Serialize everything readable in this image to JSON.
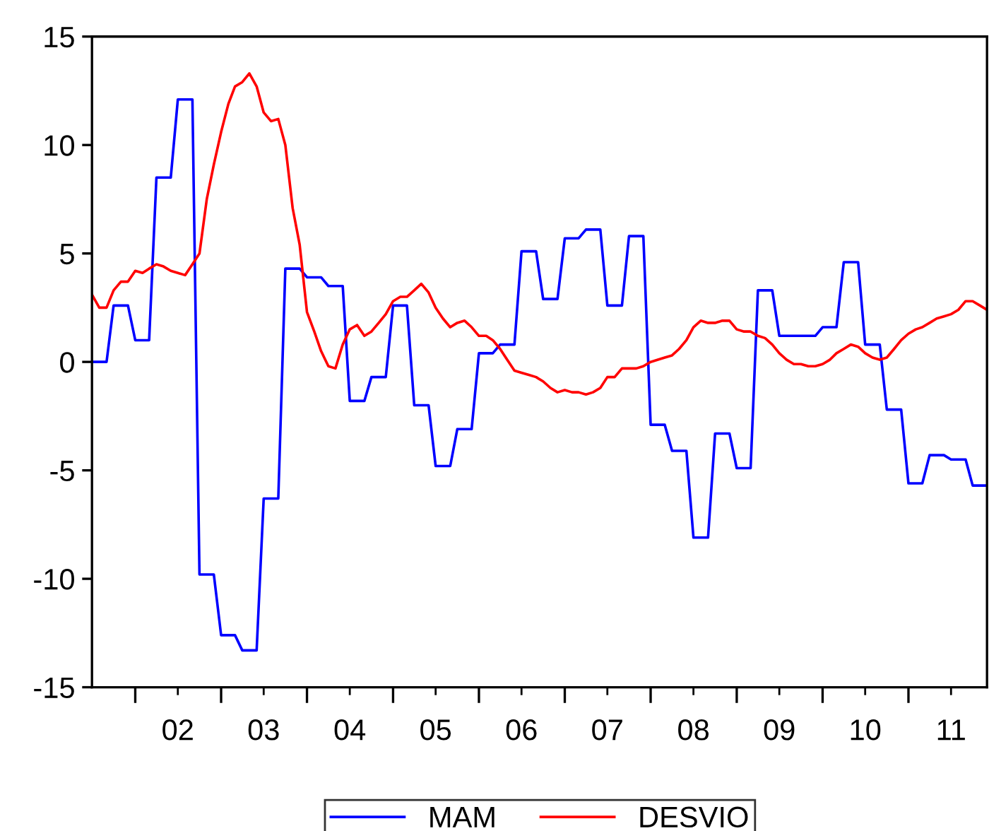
{
  "chart_data": {
    "type": "line",
    "x": [
      "2001-07",
      "2001-08",
      "2001-09",
      "2001-10",
      "2001-11",
      "2001-12",
      "2002-01",
      "2002-02",
      "2002-03",
      "2002-04",
      "2002-05",
      "2002-06",
      "2002-07",
      "2002-08",
      "2002-09",
      "2002-10",
      "2002-11",
      "2002-12",
      "2003-01",
      "2003-02",
      "2003-03",
      "2003-04",
      "2003-05",
      "2003-06",
      "2003-07",
      "2003-08",
      "2003-09",
      "2003-10",
      "2003-11",
      "2003-12",
      "2004-01",
      "2004-02",
      "2004-03",
      "2004-04",
      "2004-05",
      "2004-06",
      "2004-07",
      "2004-08",
      "2004-09",
      "2004-10",
      "2004-11",
      "2004-12",
      "2005-01",
      "2005-02",
      "2005-03",
      "2005-04",
      "2005-05",
      "2005-06",
      "2005-07",
      "2005-08",
      "2005-09",
      "2005-10",
      "2005-11",
      "2005-12",
      "2006-01",
      "2006-02",
      "2006-03",
      "2006-04",
      "2006-05",
      "2006-06",
      "2006-07",
      "2006-08",
      "2006-09",
      "2006-10",
      "2006-11",
      "2006-12",
      "2007-01",
      "2007-02",
      "2007-03",
      "2007-04",
      "2007-05",
      "2007-06",
      "2007-07",
      "2007-08",
      "2007-09",
      "2007-10",
      "2007-11",
      "2007-12",
      "2008-01",
      "2008-02",
      "2008-03",
      "2008-04",
      "2008-05",
      "2008-06",
      "2008-07",
      "2008-08",
      "2008-09",
      "2008-10",
      "2008-11",
      "2008-12",
      "2009-01",
      "2009-02",
      "2009-03",
      "2009-04",
      "2009-05",
      "2009-06",
      "2009-07",
      "2009-08",
      "2009-09",
      "2009-10",
      "2009-11",
      "2009-12",
      "2010-01",
      "2010-02",
      "2010-03",
      "2010-04",
      "2010-05",
      "2010-06",
      "2010-07",
      "2010-08",
      "2010-09",
      "2010-10",
      "2010-11",
      "2010-12",
      "2011-01",
      "2011-02",
      "2011-03",
      "2011-04",
      "2011-05",
      "2011-06",
      "2011-07",
      "2011-08",
      "2011-09",
      "2011-10",
      "2011-11",
      "2011-12"
    ],
    "series": [
      {
        "name": "MAM",
        "color": "#0000ff",
        "values": [
          0.0,
          0.0,
          0.0,
          2.6,
          2.6,
          2.6,
          1.0,
          1.0,
          1.0,
          8.5,
          8.5,
          8.5,
          12.1,
          12.1,
          12.1,
          -9.8,
          -9.8,
          -9.8,
          -12.6,
          -12.6,
          -12.6,
          -13.3,
          -13.3,
          -13.3,
          -6.3,
          -6.3,
          -6.3,
          4.3,
          4.3,
          4.3,
          3.9,
          3.9,
          3.9,
          3.5,
          3.5,
          3.5,
          -1.8,
          -1.8,
          -1.8,
          -0.7,
          -0.7,
          -0.7,
          2.6,
          2.6,
          2.6,
          -2.0,
          -2.0,
          -2.0,
          -4.8,
          -4.8,
          -4.8,
          -3.1,
          -3.1,
          -3.1,
          0.4,
          0.4,
          0.4,
          0.8,
          0.8,
          0.8,
          5.1,
          5.1,
          5.1,
          2.9,
          2.9,
          2.9,
          5.7,
          5.7,
          5.7,
          6.1,
          6.1,
          6.1,
          2.6,
          2.6,
          2.6,
          5.8,
          5.8,
          5.8,
          -2.9,
          -2.9,
          -2.9,
          -4.1,
          -4.1,
          -4.1,
          -8.1,
          -8.1,
          -8.1,
          -3.3,
          -3.3,
          -3.3,
          -4.9,
          -4.9,
          -4.9,
          3.3,
          3.3,
          3.3,
          1.2,
          1.2,
          1.2,
          1.2,
          1.2,
          1.2,
          1.6,
          1.6,
          1.6,
          4.6,
          4.6,
          4.6,
          0.8,
          0.8,
          0.8,
          -2.2,
          -2.2,
          -2.2,
          -5.6,
          -5.6,
          -5.6,
          -4.3,
          -4.3,
          -4.3,
          -4.5,
          -4.5,
          -4.5,
          -5.7,
          -5.7,
          -5.7
        ]
      },
      {
        "name": "DESVIO",
        "color": "#ff0000",
        "values": [
          3.1,
          2.5,
          2.5,
          3.3,
          3.7,
          3.7,
          4.2,
          4.1,
          4.3,
          4.5,
          4.4,
          4.2,
          4.1,
          4.0,
          4.5,
          5.0,
          7.5,
          9.1,
          10.6,
          11.9,
          12.7,
          12.9,
          13.3,
          12.7,
          11.5,
          11.1,
          11.2,
          10.0,
          7.1,
          5.4,
          2.3,
          1.4,
          0.5,
          -0.2,
          -0.3,
          0.8,
          1.5,
          1.7,
          1.2,
          1.4,
          1.8,
          2.2,
          2.8,
          3.0,
          3.0,
          3.3,
          3.6,
          3.2,
          2.5,
          2.0,
          1.6,
          1.8,
          1.9,
          1.6,
          1.2,
          1.2,
          1.0,
          0.6,
          0.1,
          -0.4,
          -0.5,
          -0.6,
          -0.7,
          -0.9,
          -1.2,
          -1.4,
          -1.3,
          -1.4,
          -1.4,
          -1.5,
          -1.4,
          -1.2,
          -0.7,
          -0.7,
          -0.3,
          -0.3,
          -0.3,
          -0.2,
          0.0,
          0.1,
          0.2,
          0.3,
          0.6,
          1.0,
          1.6,
          1.9,
          1.8,
          1.8,
          1.9,
          1.9,
          1.5,
          1.4,
          1.4,
          1.2,
          1.1,
          0.8,
          0.4,
          0.1,
          -0.1,
          -0.1,
          -0.2,
          -0.2,
          -0.1,
          0.1,
          0.4,
          0.6,
          0.8,
          0.7,
          0.4,
          0.2,
          0.1,
          0.2,
          0.6,
          1.0,
          1.3,
          1.5,
          1.6,
          1.8,
          2.0,
          2.1,
          2.2,
          2.4,
          2.8,
          2.8,
          2.6,
          2.4
        ]
      }
    ],
    "xlim": [
      "2001-07",
      "2011-12"
    ],
    "xticks": [
      {
        "value": "2002-01",
        "label": null
      },
      {
        "value": "2002-07",
        "label": "02"
      },
      {
        "value": "2003-01",
        "label": null
      },
      {
        "value": "2003-07",
        "label": "03"
      },
      {
        "value": "2004-01",
        "label": null
      },
      {
        "value": "2004-07",
        "label": "04"
      },
      {
        "value": "2005-01",
        "label": null
      },
      {
        "value": "2005-07",
        "label": "05"
      },
      {
        "value": "2006-01",
        "label": null
      },
      {
        "value": "2006-07",
        "label": "06"
      },
      {
        "value": "2007-01",
        "label": null
      },
      {
        "value": "2007-07",
        "label": "07"
      },
      {
        "value": "2008-01",
        "label": null
      },
      {
        "value": "2008-07",
        "label": "08"
      },
      {
        "value": "2009-01",
        "label": null
      },
      {
        "value": "2009-07",
        "label": "09"
      },
      {
        "value": "2010-01",
        "label": null
      },
      {
        "value": "2010-07",
        "label": "10"
      },
      {
        "value": "2011-01",
        "label": null
      },
      {
        "value": "2011-07",
        "label": "11"
      }
    ],
    "ylim": [
      -15,
      15
    ],
    "yticks": [
      -15,
      -10,
      -5,
      0,
      5,
      10,
      15
    ],
    "grid": false,
    "legend": "bottom",
    "line_style": "solid",
    "marker": "none"
  }
}
